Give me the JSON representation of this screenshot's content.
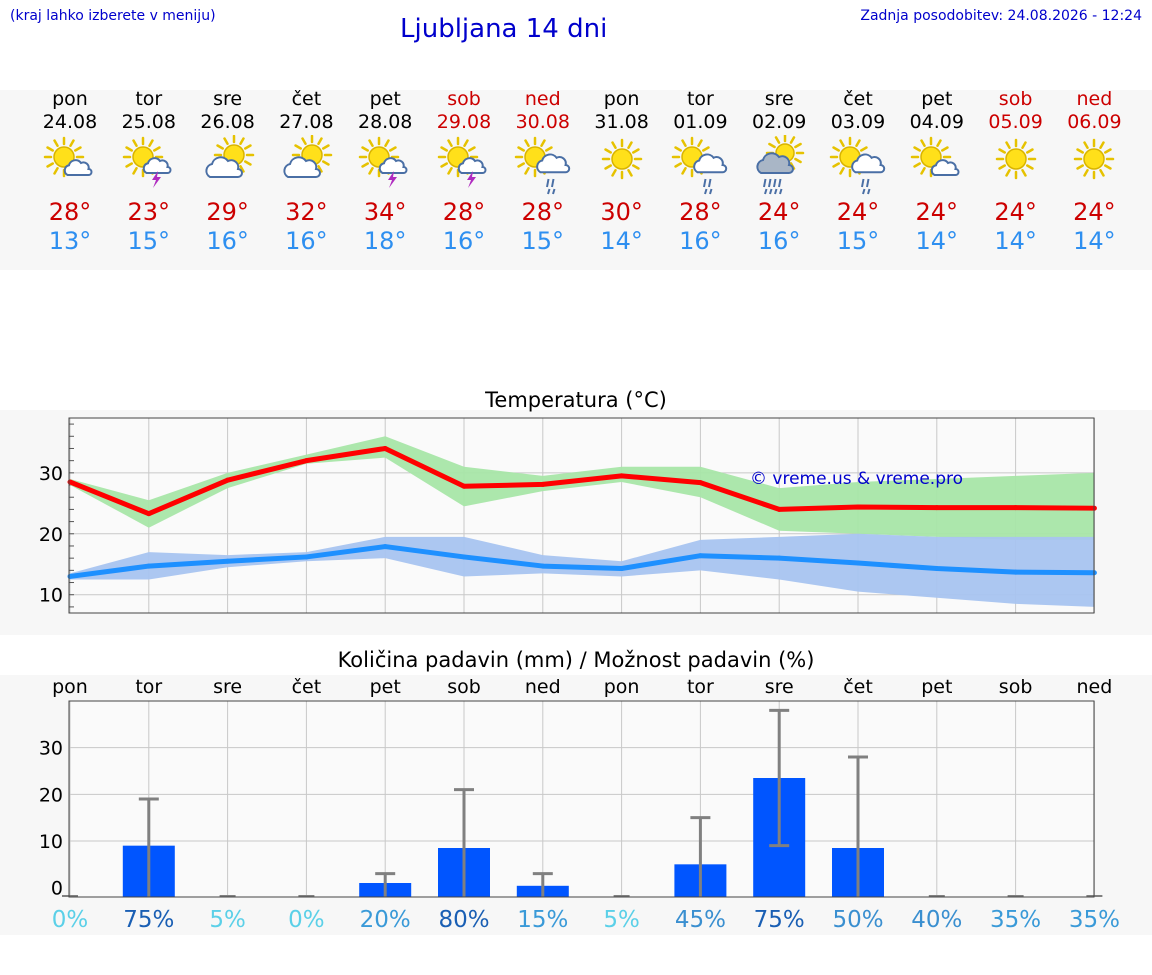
{
  "header": {
    "location_hint": "(kraj lahko izberete v meniju)",
    "title": "Ljubljana 14 dni",
    "last_update": "Zadnja posodobitev: 24.08.2026 - 12:24"
  },
  "forecast": [
    {
      "day": "pon",
      "date": "24.08",
      "weekend": false,
      "icon": "sun-cloud-icon",
      "tmax": "28°",
      "tmin": "13°"
    },
    {
      "day": "tor",
      "date": "25.08",
      "weekend": false,
      "icon": "sun-cloud-thunder-icon",
      "tmax": "23°",
      "tmin": "15°"
    },
    {
      "day": "sre",
      "date": "26.08",
      "weekend": false,
      "icon": "cloud-sun-icon",
      "tmax": "29°",
      "tmin": "16°"
    },
    {
      "day": "čet",
      "date": "27.08",
      "weekend": false,
      "icon": "cloud-sun-icon",
      "tmax": "32°",
      "tmin": "16°"
    },
    {
      "day": "pet",
      "date": "28.08",
      "weekend": false,
      "icon": "sun-cloud-thunder-icon",
      "tmax": "34°",
      "tmin": "18°"
    },
    {
      "day": "sob",
      "date": "29.08",
      "weekend": true,
      "icon": "sun-cloud-thunder-icon",
      "tmax": "28°",
      "tmin": "16°"
    },
    {
      "day": "ned",
      "date": "30.08",
      "weekend": true,
      "icon": "sun-cloud-rain-icon",
      "tmax": "28°",
      "tmin": "15°"
    },
    {
      "day": "pon",
      "date": "31.08",
      "weekend": false,
      "icon": "sun-icon",
      "tmax": "30°",
      "tmin": "14°"
    },
    {
      "day": "tor",
      "date": "01.09",
      "weekend": false,
      "icon": "sun-cloud-rain-icon",
      "tmax": "28°",
      "tmin": "16°"
    },
    {
      "day": "sre",
      "date": "02.09",
      "weekend": false,
      "icon": "cloud-heavy-rain-icon",
      "tmax": "24°",
      "tmin": "16°"
    },
    {
      "day": "čet",
      "date": "03.09",
      "weekend": false,
      "icon": "sun-cloud-rain-icon",
      "tmax": "24°",
      "tmin": "15°"
    },
    {
      "day": "pet",
      "date": "04.09",
      "weekend": false,
      "icon": "sun-cloud-icon",
      "tmax": "24°",
      "tmin": "14°"
    },
    {
      "day": "sob",
      "date": "05.09",
      "weekend": true,
      "icon": "sun-icon",
      "tmax": "24°",
      "tmin": "14°"
    },
    {
      "day": "ned",
      "date": "06.09",
      "weekend": true,
      "icon": "sun-icon",
      "tmax": "24°",
      "tmin": "14°"
    }
  ],
  "colors": {
    "max": "#ff0000",
    "min": "#1e90ff",
    "max_band": "#a8e6a8",
    "min_band": "#a8c4f0",
    "bar": "#0055ff",
    "err": "#808080",
    "weekend": "#cc0000"
  },
  "chart_data": [
    {
      "type": "line",
      "title": "Temperatura (°C)",
      "watermark": "© vreme.us & vreme.pro",
      "ylim": [
        7,
        39
      ],
      "yticks": [
        10,
        20,
        30
      ],
      "x": [
        0,
        1,
        2,
        3,
        4,
        5,
        6,
        7,
        8,
        9,
        10,
        11,
        12,
        13
      ],
      "series": [
        {
          "values": [
            28.5,
            23.3,
            28.8,
            32.0,
            34.0,
            27.8,
            28.1,
            29.5,
            28.4,
            24.0,
            24.4,
            24.3,
            24.3,
            24.2
          ],
          "low": [
            28.0,
            21.0,
            27.5,
            31.5,
            32.5,
            24.5,
            27.0,
            28.5,
            26.0,
            20.5,
            20.0,
            19.5,
            19.0,
            19.0
          ],
          "high": [
            29.0,
            25.5,
            30.0,
            33.0,
            36.0,
            31.0,
            29.5,
            31.0,
            31.0,
            27.5,
            28.5,
            29.0,
            29.5,
            30.0
          ]
        },
        {
          "values": [
            13.0,
            14.7,
            15.5,
            16.2,
            17.9,
            16.2,
            14.7,
            14.3,
            16.4,
            16.0,
            15.2,
            14.3,
            13.7,
            13.6
          ],
          "low": [
            12.5,
            12.5,
            14.5,
            15.5,
            16.0,
            13.0,
            13.5,
            13.0,
            14.0,
            12.5,
            10.5,
            9.5,
            8.5,
            8.0
          ],
          "high": [
            13.5,
            17.0,
            16.5,
            17.0,
            19.5,
            19.5,
            16.5,
            15.5,
            19.0,
            19.5,
            20.0,
            19.5,
            19.5,
            19.5
          ]
        }
      ]
    },
    {
      "type": "bar",
      "title": "Količina padavin (mm) / Možnost padavin (%)",
      "categories": [
        "pon",
        "tor",
        "sre",
        "čet",
        "pet",
        "sob",
        "ned",
        "pon",
        "tor",
        "sre",
        "čet",
        "pet",
        "sob",
        "ned"
      ],
      "values": [
        0,
        9,
        0,
        0,
        1,
        8.5,
        0.4,
        0,
        5,
        23.5,
        8.5,
        0,
        0,
        0
      ],
      "err_high": [
        0,
        19,
        0,
        0,
        3,
        21,
        3,
        0,
        15,
        38,
        28,
        0,
        0,
        0
      ],
      "err_low": [
        0,
        0,
        0,
        0,
        0,
        0,
        0,
        0,
        0,
        9,
        0,
        0,
        0,
        0
      ],
      "probability": [
        "0%",
        "75%",
        "5%",
        "0%",
        "20%",
        "80%",
        "15%",
        "5%",
        "45%",
        "75%",
        "50%",
        "40%",
        "35%",
        "35%"
      ],
      "probability_values": [
        0,
        75,
        5,
        0,
        20,
        80,
        15,
        5,
        45,
        75,
        50,
        40,
        35,
        35
      ],
      "ylim": [
        -2,
        40
      ],
      "yticks": [
        0,
        10,
        20,
        30
      ]
    }
  ]
}
